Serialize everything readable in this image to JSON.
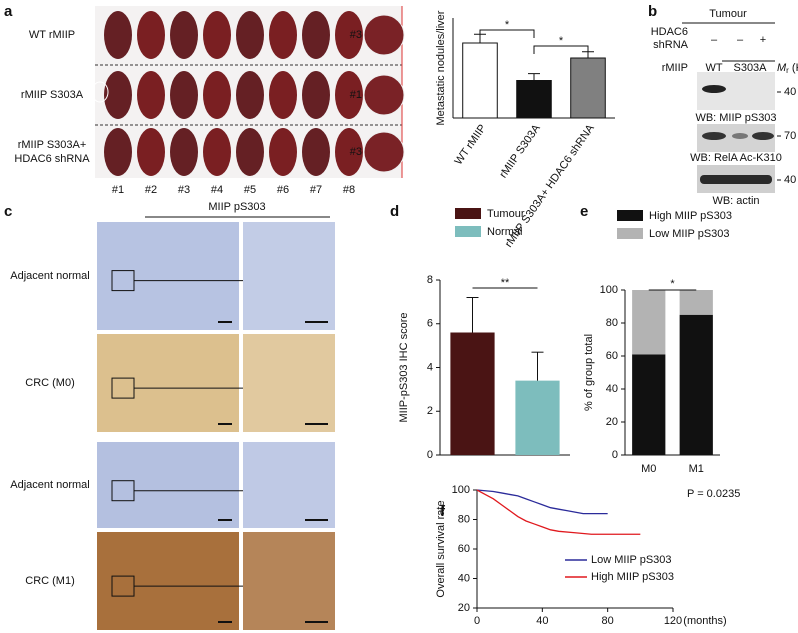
{
  "panel_labels": [
    "a",
    "b",
    "c",
    "d",
    "e",
    "f"
  ],
  "liver_photos": {
    "rows": [
      [
        "WT rMIIP"
      ],
      [
        "rMIIP S303A"
      ],
      [
        "rMIIP S303A+",
        "HDAC6 shRNA"
      ]
    ],
    "columns": [
      "#1",
      "#2",
      "#3",
      "#4",
      "#5",
      "#6",
      "#7",
      "#8"
    ],
    "insets": [
      "#3",
      "#1",
      "#3"
    ]
  },
  "western_blot": {
    "tumour": "Tumour",
    "hdac6": [
      "HDAC6",
      "shRNA"
    ],
    "shrna_marks": [
      "–",
      "–",
      "+"
    ],
    "rmiip": "rMIIP",
    "wt": "WT",
    "s303a": "S303A",
    "mr_symbol": "M",
    "mr_sub": "r",
    "mr_unit": " (K)",
    "blots": [
      {
        "label": "WB: MIIP pS303",
        "size": "40"
      },
      {
        "label": "WB: RelA Ac-K310",
        "size": "70"
      },
      {
        "label": "WB: actin",
        "size": "40"
      }
    ]
  },
  "ihc": {
    "title": "MIIP pS303",
    "rows": [
      "Adjacent normal",
      "CRC (M0)",
      "Adjacent normal",
      "CRC (M1)"
    ]
  },
  "chart_data": [
    {
      "type": "bar",
      "ylabel": "Metastatic nodules/liver",
      "categories": [
        "WT rMIIP",
        "rMIIP S303A",
        "rMIIP S303A+ HDAC6 shRNA"
      ],
      "values": [
        6,
        3,
        4.8
      ],
      "errors": [
        0.7,
        0.55,
        0.5
      ],
      "colors": [
        "#ffffff",
        "#111111",
        "#808080"
      ],
      "ylim": [
        0,
        8
      ],
      "annotations": [
        "*",
        "*"
      ]
    },
    {
      "type": "bar",
      "ylabel": "MIIP-pS303 IHC score",
      "series": [
        {
          "name": "Tumour",
          "color": "#4a1414",
          "values": [
            5.6
          ],
          "errors": [
            1.6
          ]
        },
        {
          "name": "Normal",
          "color": "#7dbdbd",
          "values": [
            3.4
          ],
          "errors": [
            1.3
          ]
        }
      ],
      "ylim": [
        0,
        8
      ],
      "yticks": [
        0,
        2,
        4,
        6,
        8
      ],
      "annotations": [
        "**"
      ]
    },
    {
      "type": "stacked_bar",
      "ylabel": "% of group total",
      "categories": [
        "M0",
        "M1"
      ],
      "series": [
        {
          "name": "High MIIP pS303",
          "color": "#111111",
          "values": [
            61,
            85
          ]
        },
        {
          "name": "Low MIIP pS303",
          "color": "#b3b3b3",
          "values": [
            39,
            15
          ]
        }
      ],
      "ylim": [
        0,
        100
      ],
      "yticks": [
        0,
        20,
        40,
        60,
        80,
        100
      ],
      "annotations": [
        "*"
      ]
    },
    {
      "type": "line",
      "ylabel": "Overall survival rate",
      "xlabel": "(months)",
      "xlim": [
        0,
        120
      ],
      "xticks": [
        0,
        40,
        80,
        120
      ],
      "ylim": [
        20,
        100
      ],
      "yticks": [
        20,
        40,
        60,
        80,
        100
      ],
      "annotation": "P = 0.0235",
      "series": [
        {
          "name": "Low MIIP pS303",
          "color": "#2b2b9a",
          "x": [
            0,
            10,
            15,
            20,
            25,
            30,
            35,
            40,
            45,
            50,
            55,
            60,
            65,
            70,
            80
          ],
          "values": [
            100,
            99,
            98,
            97,
            96,
            94,
            92,
            90,
            88,
            87,
            86,
            85,
            84,
            84,
            84
          ]
        },
        {
          "name": "High MIIP pS303",
          "color": "#e0191e",
          "x": [
            0,
            5,
            10,
            15,
            20,
            25,
            30,
            35,
            40,
            45,
            50,
            60,
            70,
            80,
            90,
            100
          ],
          "values": [
            100,
            97,
            94,
            90,
            86,
            82,
            79,
            77,
            75,
            73,
            72,
            71,
            70,
            70,
            70,
            70
          ]
        }
      ]
    }
  ]
}
